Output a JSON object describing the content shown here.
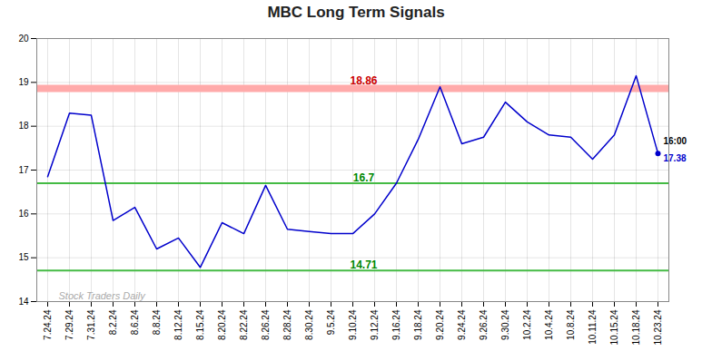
{
  "chart_data": {
    "type": "line",
    "title": "MBC Long Term Signals",
    "categories": [
      "7.24.24",
      "7.29.24",
      "7.31.24",
      "8.2.24",
      "8.6.24",
      "8.8.24",
      "8.12.24",
      "8.15.24",
      "8.20.24",
      "8.22.24",
      "8.26.24",
      "8.28.24",
      "8.30.24",
      "9.5.24",
      "9.10.24",
      "9.12.24",
      "9.16.24",
      "9.18.24",
      "9.20.24",
      "9.24.24",
      "9.26.24",
      "9.30.24",
      "10.2.24",
      "10.4.24",
      "10.8.24",
      "10.11.24",
      "10.15.24",
      "10.18.24",
      "10.23.24"
    ],
    "values": [
      16.85,
      18.3,
      18.25,
      15.85,
      16.15,
      15.2,
      15.45,
      14.78,
      15.8,
      15.55,
      16.65,
      15.65,
      15.6,
      15.55,
      15.55,
      16.0,
      16.7,
      17.7,
      18.9,
      17.6,
      17.75,
      18.55,
      18.1,
      17.8,
      17.75,
      17.25,
      17.8,
      19.15,
      17.38
    ],
    "color": "#0000cc",
    "ylim": [
      14,
      20
    ],
    "yticks": [
      14,
      15,
      16,
      17,
      18,
      19,
      20
    ],
    "grid": true,
    "hlines": [
      {
        "value": 18.86,
        "label": "18.86",
        "color": "#ffaaaa",
        "label_color": "#cc0000",
        "line_style": "band"
      },
      {
        "value": 16.7,
        "label": "16.7",
        "color": "#44bb44",
        "label_color": "#008800",
        "line_style": "solid"
      },
      {
        "value": 14.71,
        "label": "14.71",
        "color": "#44bb44",
        "label_color": "#008800",
        "line_style": "solid"
      }
    ],
    "last_point": {
      "color": "#0000cc",
      "labels": [
        {
          "text": "16:00",
          "color": "#000000"
        },
        {
          "text": "17.38",
          "color": "#0000cc"
        }
      ]
    },
    "watermark": {
      "text": "Stock Traders Daily",
      "color": "#aaaaaa"
    }
  }
}
